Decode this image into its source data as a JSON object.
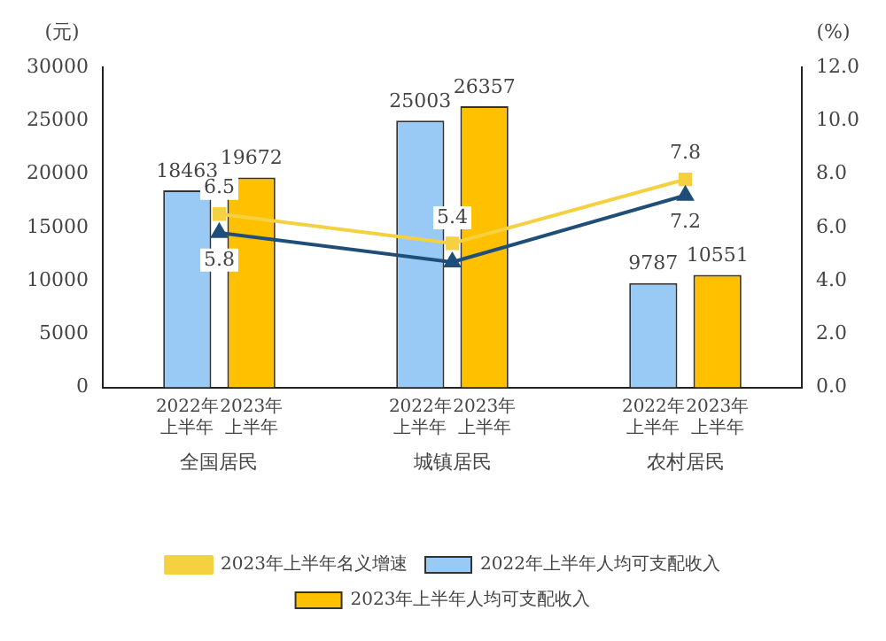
{
  "chart_data": {
    "type": "bar",
    "ylabel": "(元)",
    "y2label": "(%)",
    "categories": [
      "全国居民",
      "城镇居民",
      "农村居民"
    ],
    "series": [
      {
        "name": "2022年上半年人均可支配收入",
        "color": "#99c9f5",
        "values": [
          18463,
          25003,
          9787
        ],
        "value_labels": [
          "18463",
          "25003",
          "9787"
        ]
      },
      {
        "name": "2023年上半年人均可支配收入",
        "color": "#ffc000",
        "values": [
          19672,
          26357,
          10551
        ],
        "value_labels": [
          "19672",
          "26357",
          "10551"
        ]
      },
      {
        "type": "line",
        "axis": "y2",
        "color": "#1f4e79",
        "marker": "triangle",
        "values": [
          5.8,
          4.7,
          7.2
        ],
        "value_labels": [
          "5.8",
          null,
          "7.2"
        ]
      },
      {
        "name": "2023年上半年名义增速",
        "type": "line",
        "axis": "y2",
        "color": "#f5d142",
        "marker": "square",
        "values": [
          6.5,
          5.4,
          7.8
        ],
        "value_labels": [
          "6.5",
          "5.4",
          "7.8"
        ]
      }
    ],
    "ylim": [
      0,
      30000
    ],
    "yticks": [
      0,
      5000,
      10000,
      15000,
      20000,
      25000,
      30000
    ],
    "y2lim": [
      0,
      12
    ],
    "y2ticks": [
      {
        "value": 0,
        "label": "0.0"
      },
      {
        "value": 2,
        "label": "2.0"
      },
      {
        "value": 4,
        "label": "4.0"
      },
      {
        "value": 6,
        "label": "6.0"
      },
      {
        "value": 8,
        "label": "8.0"
      },
      {
        "value": 10,
        "label": "10.0"
      },
      {
        "value": 12,
        "label": "12.0"
      }
    ],
    "annotations": [
      "2022年上半年",
      "2023年上半年",
      "2022年上半年",
      "2023年上半年",
      "2022年上半年",
      "2023年上半年"
    ],
    "grid": false,
    "legend": "bottom"
  }
}
